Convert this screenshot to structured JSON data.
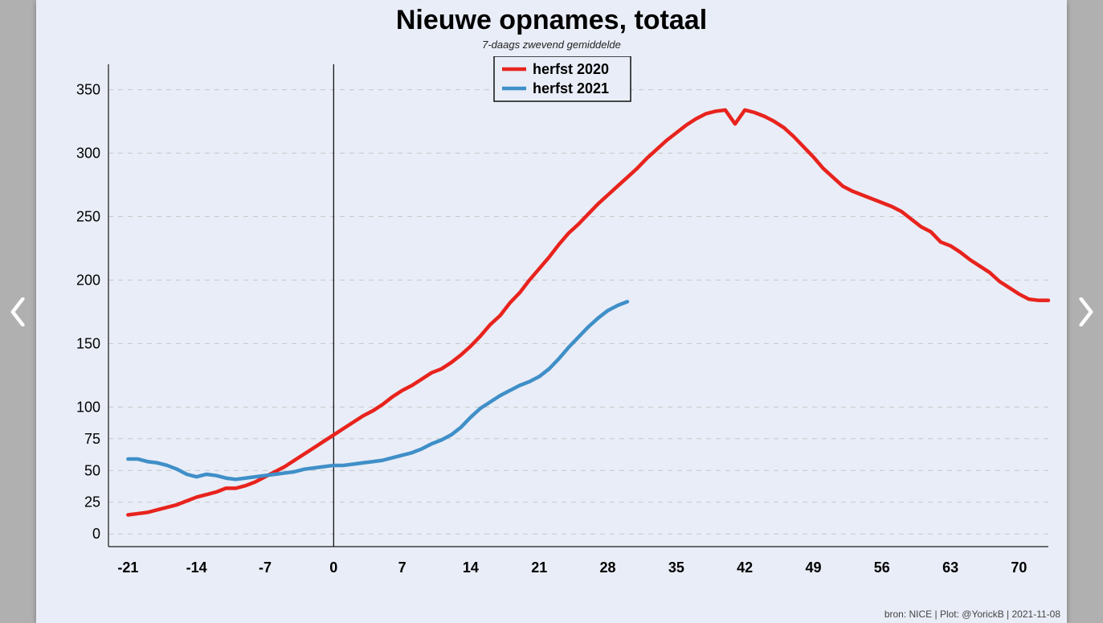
{
  "title": "Nieuwe opnames, totaal",
  "subtitle": "7-daags zwevend gemiddelde",
  "credit": "bron: NICE  | Plot: @YorickB |  2021-11-08",
  "chart": {
    "type": "line",
    "background_color": "#e9edf7",
    "grid_color": "#c7c7c7",
    "axis_color": "#404040",
    "tick_font_size": 18,
    "title_font_size": 34,
    "subtitle_font_size": 13,
    "line_width": 4.5,
    "xlim": [
      -23,
      73
    ],
    "ylim": [
      -10,
      370
    ],
    "x_ticks": [
      -21,
      -14,
      -7,
      0,
      7,
      14,
      21,
      28,
      35,
      42,
      49,
      56,
      63,
      70
    ],
    "y_ticks": [
      0,
      25,
      50,
      75,
      100,
      150,
      200,
      250,
      300,
      350
    ],
    "vline_at_x": 0,
    "legend": {
      "border_color": "#000000",
      "bg_color": "#e9edf7",
      "items": [
        {
          "label": "herfst 2020",
          "color": "#e8231d"
        },
        {
          "label": "herfst 2021",
          "color": "#3f8fc8"
        }
      ]
    },
    "series": [
      {
        "name": "herfst 2020",
        "color": "#e8231d",
        "points": [
          [
            -21,
            15
          ],
          [
            -20,
            16
          ],
          [
            -19,
            17
          ],
          [
            -18,
            19
          ],
          [
            -17,
            21
          ],
          [
            -16,
            23
          ],
          [
            -15,
            26
          ],
          [
            -14,
            29
          ],
          [
            -13,
            31
          ],
          [
            -12,
            33
          ],
          [
            -11,
            36
          ],
          [
            -10,
            36
          ],
          [
            -9,
            38
          ],
          [
            -8,
            41
          ],
          [
            -7,
            45
          ],
          [
            -6,
            49
          ],
          [
            -5,
            53
          ],
          [
            -4,
            58
          ],
          [
            -3,
            63
          ],
          [
            -2,
            68
          ],
          [
            -1,
            73
          ],
          [
            0,
            78
          ],
          [
            1,
            83
          ],
          [
            2,
            88
          ],
          [
            3,
            93
          ],
          [
            4,
            97
          ],
          [
            5,
            102
          ],
          [
            6,
            108
          ],
          [
            7,
            113
          ],
          [
            8,
            117
          ],
          [
            9,
            122
          ],
          [
            10,
            127
          ],
          [
            11,
            130
          ],
          [
            12,
            135
          ],
          [
            13,
            141
          ],
          [
            14,
            148
          ],
          [
            15,
            156
          ],
          [
            16,
            165
          ],
          [
            17,
            172
          ],
          [
            18,
            182
          ],
          [
            19,
            190
          ],
          [
            20,
            200
          ],
          [
            21,
            209
          ],
          [
            22,
            218
          ],
          [
            23,
            228
          ],
          [
            24,
            237
          ],
          [
            25,
            244
          ],
          [
            26,
            252
          ],
          [
            27,
            260
          ],
          [
            28,
            267
          ],
          [
            29,
            274
          ],
          [
            30,
            281
          ],
          [
            31,
            288
          ],
          [
            32,
            296
          ],
          [
            33,
            303
          ],
          [
            34,
            310
          ],
          [
            35,
            316
          ],
          [
            36,
            322
          ],
          [
            37,
            327
          ],
          [
            38,
            331
          ],
          [
            39,
            333
          ],
          [
            40,
            334
          ],
          [
            41,
            323
          ],
          [
            42,
            334
          ],
          [
            43,
            332
          ],
          [
            44,
            329
          ],
          [
            45,
            325
          ],
          [
            46,
            320
          ],
          [
            47,
            313
          ],
          [
            48,
            305
          ],
          [
            49,
            297
          ],
          [
            50,
            288
          ],
          [
            51,
            281
          ],
          [
            52,
            274
          ],
          [
            53,
            270
          ],
          [
            54,
            267
          ],
          [
            55,
            264
          ],
          [
            56,
            261
          ],
          [
            57,
            258
          ],
          [
            58,
            254
          ],
          [
            59,
            248
          ],
          [
            60,
            242
          ],
          [
            61,
            238
          ],
          [
            62,
            230
          ],
          [
            63,
            227
          ],
          [
            64,
            222
          ],
          [
            65,
            216
          ],
          [
            66,
            211
          ],
          [
            67,
            206
          ],
          [
            68,
            199
          ],
          [
            69,
            194
          ],
          [
            70,
            189
          ],
          [
            71,
            185
          ],
          [
            72,
            184
          ],
          [
            73,
            184
          ]
        ]
      },
      {
        "name": "herfst 2021",
        "color": "#3f8fc8",
        "points": [
          [
            -21,
            59
          ],
          [
            -20,
            59
          ],
          [
            -19,
            57
          ],
          [
            -18,
            56
          ],
          [
            -17,
            54
          ],
          [
            -16,
            51
          ],
          [
            -15,
            47
          ],
          [
            -14,
            45
          ],
          [
            -13,
            47
          ],
          [
            -12,
            46
          ],
          [
            -11,
            44
          ],
          [
            -10,
            43
          ],
          [
            -9,
            44
          ],
          [
            -8,
            45
          ],
          [
            -7,
            46
          ],
          [
            -6,
            47
          ],
          [
            -5,
            48
          ],
          [
            -4,
            49
          ],
          [
            -3,
            51
          ],
          [
            -2,
            52
          ],
          [
            -1,
            53
          ],
          [
            0,
            54
          ],
          [
            1,
            54
          ],
          [
            2,
            55
          ],
          [
            3,
            56
          ],
          [
            4,
            57
          ],
          [
            5,
            58
          ],
          [
            6,
            60
          ],
          [
            7,
            62
          ],
          [
            8,
            64
          ],
          [
            9,
            67
          ],
          [
            10,
            71
          ],
          [
            11,
            74
          ],
          [
            12,
            78
          ],
          [
            13,
            84
          ],
          [
            14,
            92
          ],
          [
            15,
            99
          ],
          [
            16,
            104
          ],
          [
            17,
            109
          ],
          [
            18,
            113
          ],
          [
            19,
            117
          ],
          [
            20,
            120
          ],
          [
            21,
            124
          ],
          [
            22,
            130
          ],
          [
            23,
            138
          ],
          [
            24,
            147
          ],
          [
            25,
            155
          ],
          [
            26,
            163
          ],
          [
            27,
            170
          ],
          [
            28,
            176
          ],
          [
            29,
            180
          ],
          [
            30,
            183
          ]
        ]
      }
    ]
  }
}
